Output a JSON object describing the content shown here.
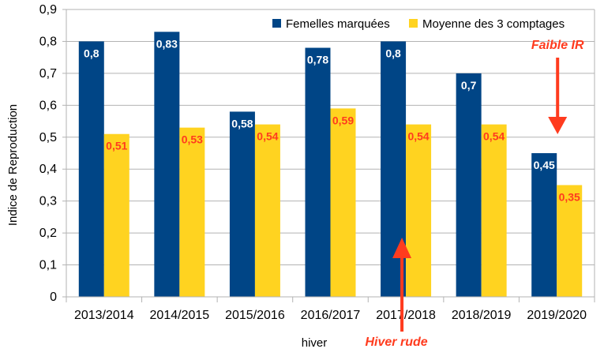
{
  "chart_data": {
    "type": "bar",
    "title": "",
    "xlabel": "hiver",
    "ylabel": "Indice de Reproduction",
    "ylim": [
      0,
      0.9
    ],
    "yticks": [
      "0",
      "0,1",
      "0,2",
      "0,3",
      "0,4",
      "0,5",
      "0,6",
      "0,7",
      "0,8",
      "0,9"
    ],
    "grid": true,
    "legend_position": "top-right",
    "categories": [
      "2013/2014",
      "2014/2015",
      "2015/2016",
      "2016/2017",
      "2017/2018",
      "2018/2019",
      "2019/2020"
    ],
    "series": [
      {
        "name": "Femelles marquées",
        "color": "#004586",
        "label_color": "#ffffff",
        "values": [
          0.8,
          0.83,
          0.58,
          0.78,
          0.8,
          0.7,
          0.45
        ],
        "labels": [
          "0,8",
          "0,83",
          "0,58",
          "0,78",
          "0,8",
          "0,7",
          "0,45"
        ]
      },
      {
        "name": "Moyenne des 3 comptages",
        "color": "#ffd320",
        "label_color": "#ff3b1e",
        "values": [
          0.51,
          0.53,
          0.54,
          0.59,
          0.54,
          0.54,
          0.35
        ],
        "labels": [
          "0,51",
          "0,53",
          "0,54",
          "0,59",
          "0,54",
          "0,54",
          "0,35"
        ]
      }
    ],
    "annotations": [
      {
        "text": "Faible IR",
        "category": "2019/2020",
        "arrow": "down"
      },
      {
        "text": "Hiver rude",
        "category": "2017/2018",
        "arrow": "up"
      }
    ],
    "annotation_color": "#ff3b1e"
  }
}
